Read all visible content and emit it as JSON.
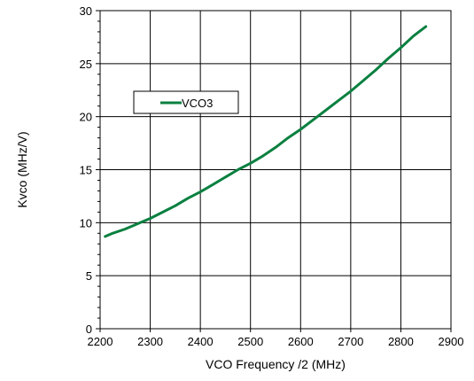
{
  "chart_data": {
    "type": "line",
    "xlabel": "VCO Frequency /2 (MHz)",
    "ylabel": "Kvco (MHz/V)",
    "xlim": [
      2200,
      2900
    ],
    "ylim": [
      0,
      30
    ],
    "x_ticks": [
      "2200",
      "2300",
      "2400",
      "2500",
      "2600",
      "2700",
      "2800",
      "2900"
    ],
    "y_ticks": [
      "0",
      "5",
      "10",
      "15",
      "20",
      "25",
      "30"
    ],
    "grid": true,
    "legend_position": "upper-left",
    "series": [
      {
        "name": "VCO3",
        "color": "#0a8040",
        "x": [
          2210,
          2225,
          2250,
          2275,
          2300,
          2325,
          2350,
          2375,
          2400,
          2425,
          2450,
          2475,
          2500,
          2525,
          2550,
          2575,
          2600,
          2625,
          2650,
          2675,
          2700,
          2725,
          2750,
          2775,
          2800,
          2825,
          2850
        ],
        "y": [
          8.7,
          9.0,
          9.4,
          9.9,
          10.4,
          11.0,
          11.6,
          12.3,
          12.9,
          13.6,
          14.3,
          15.0,
          15.6,
          16.3,
          17.1,
          18.0,
          18.8,
          19.7,
          20.6,
          21.5,
          22.4,
          23.4,
          24.4,
          25.5,
          26.5,
          27.6,
          28.5
        ]
      }
    ]
  }
}
